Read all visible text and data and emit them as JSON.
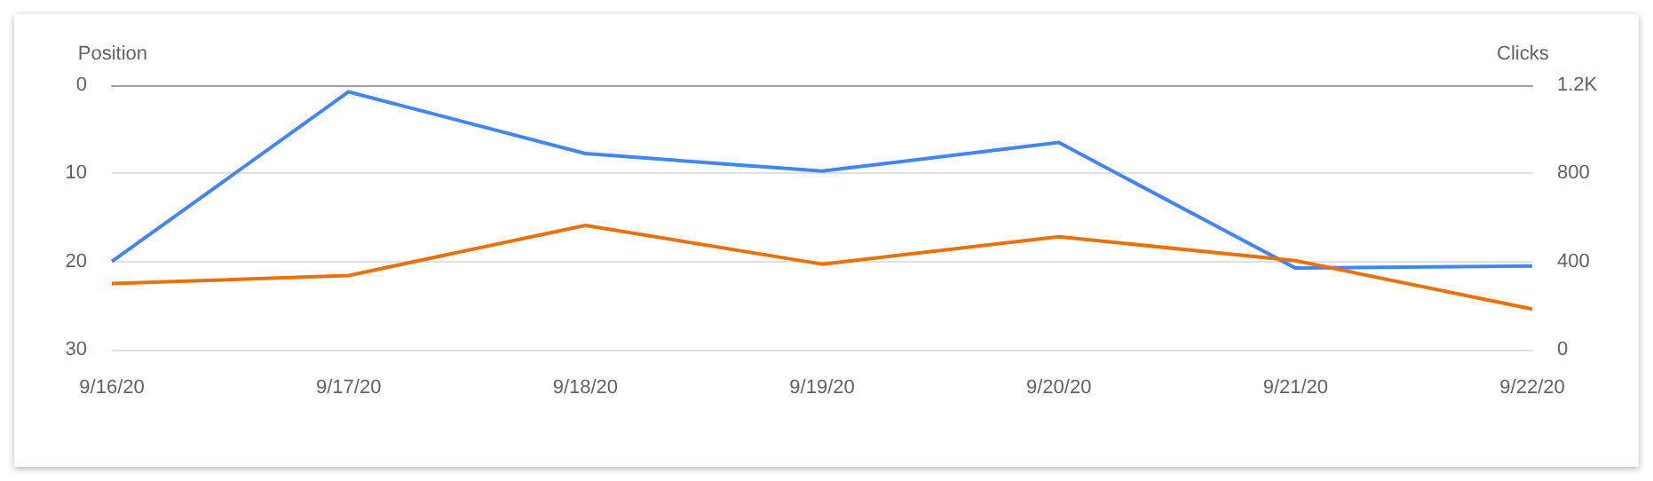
{
  "chart_data": {
    "type": "line",
    "ylabel": "Position",
    "y2label": "Clicks",
    "categories": [
      "9/16/20",
      "9/17/20",
      "9/18/20",
      "9/19/20",
      "9/20/20",
      "9/21/20",
      "9/22/20"
    ],
    "series": [
      {
        "color": "#4285f4",
        "axis": "y2",
        "values": [
          400,
          1170,
          890,
          810,
          940,
          370,
          380
        ]
      },
      {
        "color": "#e8710a",
        "values": [
          22.5,
          21.6,
          15.9,
          20.3,
          17.2,
          19.9,
          25.4
        ]
      }
    ],
    "ylim": [
      30,
      0
    ],
    "yticks": [
      0,
      10,
      20,
      30
    ],
    "y2lim": [
      0,
      1200
    ],
    "y2ticks": [
      0,
      400,
      800,
      {
        "value": 1200,
        "label": "1.2K"
      }
    ],
    "grid": "y",
    "marker": "none",
    "line_style": "solid"
  }
}
